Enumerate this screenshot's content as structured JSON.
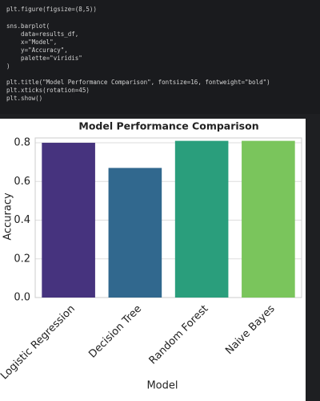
{
  "code": {
    "lines": [
      "plt.figure(figsize=(8,5))",
      "sns.barplot(",
      "    data=results_df,",
      "    x=\"Model\",",
      "    y=\"Accuracy\",",
      "    palette=\"viridis\"",
      ")",
      "plt.title(\"Model Performance Comparison\", fontsize=16, fontweight=\"bold\")",
      "plt.xticks(rotation=45)",
      "plt.show()"
    ]
  },
  "chart_data": {
    "type": "bar",
    "title": "Model Performance Comparison",
    "x_label": "Model",
    "y_label": "Accuracy",
    "categories": [
      "Logistic Regression",
      "Decision Tree",
      "Random Forest",
      "Naive Bayes"
    ],
    "values": [
      0.8,
      0.67,
      0.81,
      0.81
    ],
    "colors": [
      "#46337e",
      "#31688e",
      "#2a9e7c",
      "#7ac55c"
    ],
    "ylim": [
      0,
      0.825
    ],
    "yticks": [
      {
        "value": 0,
        "label": "0.0"
      },
      0.2,
      0.4,
      0.6,
      0.8
    ],
    "grid": true
  }
}
